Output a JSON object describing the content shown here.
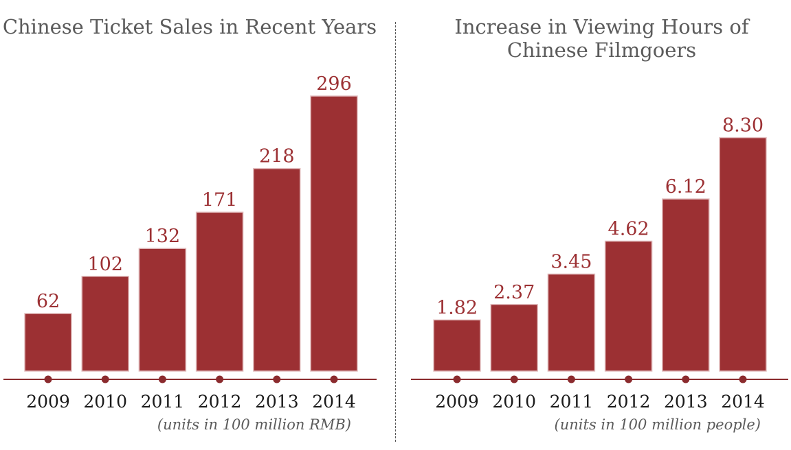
{
  "colors": {
    "bar": "#9c3033",
    "bar_edge": "#e3bfc0",
    "axis": "#8b2b2e",
    "value_text": "#9c3033",
    "tick_text": "#1a1a1a"
  },
  "chart_data": [
    {
      "type": "bar",
      "title": "Chinese Ticket Sales in Recent Years",
      "categories": [
        "2009",
        "2010",
        "2011",
        "2012",
        "2013",
        "2014"
      ],
      "values": [
        62,
        102,
        132,
        171,
        218,
        296
      ],
      "value_labels": [
        "62",
        "102",
        "132",
        "171",
        "218",
        "296"
      ],
      "note": "(units in 100 million RMB)",
      "ylim": [
        0,
        310
      ],
      "grid": false,
      "legend": "none"
    },
    {
      "type": "bar",
      "title": "Increase in Viewing Hours of Chinese Filmgoers",
      "categories": [
        "2009",
        "2010",
        "2011",
        "2012",
        "2013",
        "2014"
      ],
      "values": [
        1.82,
        2.37,
        3.45,
        4.62,
        6.12,
        8.3
      ],
      "value_labels": [
        "1.82",
        "2.37",
        "3.45",
        "4.62",
        "6.12",
        "8.30"
      ],
      "note": "(units in 100 million people)",
      "ylim": [
        0,
        8.9
      ],
      "grid": false,
      "legend": "none"
    }
  ]
}
